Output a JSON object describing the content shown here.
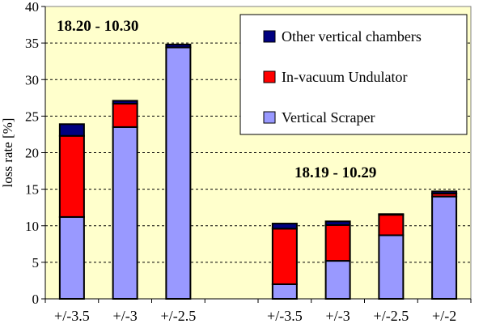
{
  "chart_data": {
    "type": "bar",
    "stacked": true,
    "ylabel": "loss rate [%]",
    "xlabel": "",
    "ylim": [
      0,
      40
    ],
    "yticks": [
      0,
      5,
      10,
      15,
      20,
      25,
      30,
      35,
      40
    ],
    "grid": "horizontal dashed",
    "legend_position": "top-right",
    "plot_background": "#ffffcc",
    "categories": [
      "+/-3.5",
      "+/-3",
      "+/-2.5",
      "",
      "+/-3.5",
      "+/-3",
      "+/-2.5",
      "+/-2"
    ],
    "series": [
      {
        "name": "Vertical Scraper",
        "color": "#9999ff",
        "values": [
          11.2,
          23.5,
          34.4,
          null,
          2.0,
          5.2,
          8.7,
          14.0
        ]
      },
      {
        "name": "In-vacuum Undulator",
        "color": "#ff0000",
        "values": [
          11.1,
          3.2,
          0.0,
          null,
          7.6,
          4.9,
          2.8,
          0.4
        ]
      },
      {
        "name": "Other vertical chambers",
        "color": "#000080",
        "values": [
          1.6,
          0.4,
          0.4,
          null,
          0.7,
          0.5,
          0.1,
          0.3
        ]
      }
    ],
    "legend_order": [
      "Other vertical chambers",
      "In-vacuum Undulator",
      "Vertical Scraper"
    ],
    "annotations": [
      {
        "text": "18.20 - 10.30",
        "group": "left"
      },
      {
        "text": "18.19 - 10.29",
        "group": "right"
      }
    ]
  }
}
